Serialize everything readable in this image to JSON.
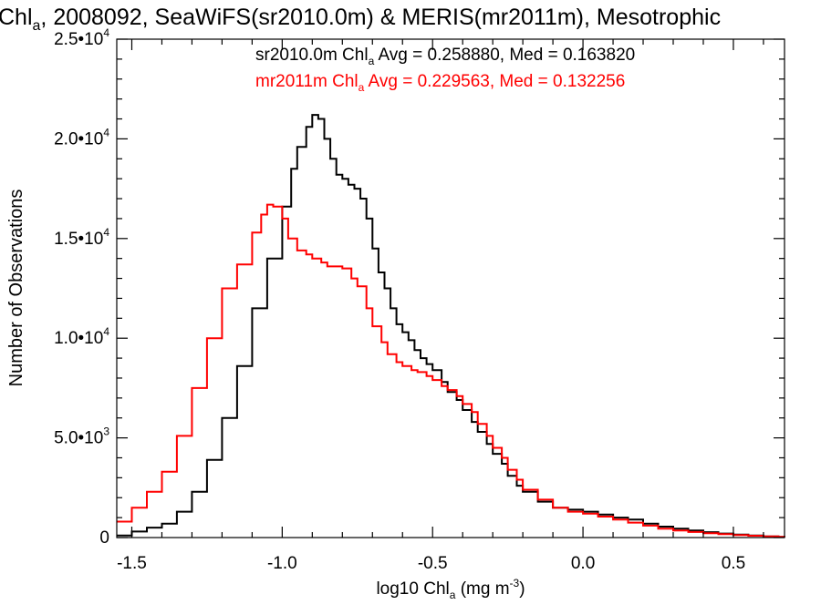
{
  "chart_data": {
    "type": "line",
    "title": {
      "prefix": "Chl",
      "sub": "a",
      "rest": ", 2008092, SeaWiFS(sr2010.0m) & MERIS(mr2011m), Mesotrophic"
    },
    "xlabel": {
      "prefix": "log10 Chl",
      "sub": "a",
      "mid": " (mg m",
      "sup": "-3",
      "suffix": ")"
    },
    "ylabel": "Number of Observations",
    "xlim": [
      -1.55,
      0.67
    ],
    "ylim": [
      0,
      25000
    ],
    "x_ticks": [
      {
        "value": -1.5,
        "label": "-1.5"
      },
      {
        "value": -1.0,
        "label": "-1.0"
      },
      {
        "value": -0.5,
        "label": "-0.5"
      },
      {
        "value": 0.0,
        "label": "0.0"
      },
      {
        "value": 0.5,
        "label": "0.5"
      }
    ],
    "y_ticks": [
      {
        "value": 0,
        "mant": "0",
        "exp": ""
      },
      {
        "value": 5000,
        "mant": "5.0•10",
        "exp": "3"
      },
      {
        "value": 10000,
        "mant": "1.0•10",
        "exp": "4"
      },
      {
        "value": 15000,
        "mant": "1.5•10",
        "exp": "4"
      },
      {
        "value": 20000,
        "mant": "2.0•10",
        "exp": "4"
      },
      {
        "value": 25000,
        "mant": "2.5•10",
        "exp": "4"
      }
    ],
    "grid": false,
    "legend_position": "top-right",
    "series": [
      {
        "color": "#000000",
        "stats": {
          "prefix": "sr2010.0m Chl",
          "sub": "a",
          "rest": " Avg = 0.258880, Med = 0.163820"
        },
        "x": [
          -1.55,
          -1.5,
          -1.45,
          -1.4,
          -1.35,
          -1.3,
          -1.25,
          -1.2,
          -1.15,
          -1.1,
          -1.05,
          -1.0,
          -0.97,
          -0.95,
          -0.92,
          -0.9,
          -0.88,
          -0.86,
          -0.84,
          -0.82,
          -0.8,
          -0.78,
          -0.76,
          -0.74,
          -0.72,
          -0.7,
          -0.68,
          -0.66,
          -0.64,
          -0.62,
          -0.6,
          -0.58,
          -0.56,
          -0.54,
          -0.52,
          -0.5,
          -0.47,
          -0.45,
          -0.42,
          -0.4,
          -0.37,
          -0.35,
          -0.32,
          -0.3,
          -0.27,
          -0.25,
          -0.22,
          -0.2,
          -0.15,
          -0.1,
          -0.05,
          0.0,
          0.05,
          0.1,
          0.15,
          0.2,
          0.25,
          0.3,
          0.35,
          0.4,
          0.45,
          0.5,
          0.55,
          0.6,
          0.65,
          0.67
        ],
        "y": [
          100,
          300,
          500,
          700,
          1300,
          2300,
          3900,
          6000,
          8600,
          11500,
          14000,
          16600,
          18500,
          19600,
          20600,
          21200,
          21000,
          20000,
          19000,
          18200,
          18000,
          17700,
          17500,
          17000,
          16000,
          14500,
          13300,
          12500,
          11500,
          10700,
          10300,
          9900,
          9400,
          9000,
          8700,
          8400,
          7800,
          7300,
          6900,
          6400,
          5800,
          5300,
          4700,
          4200,
          3700,
          3100,
          2600,
          2300,
          1800,
          1500,
          1400,
          1300,
          1150,
          1000,
          900,
          700,
          550,
          450,
          350,
          270,
          200,
          150,
          100,
          60,
          30,
          20
        ]
      },
      {
        "color": "#ff0000",
        "stats": {
          "prefix": "mr2011m Chl",
          "sub": "a",
          "rest": " Avg = 0.229563, Med = 0.132256"
        },
        "x": [
          -1.55,
          -1.5,
          -1.45,
          -1.4,
          -1.35,
          -1.3,
          -1.25,
          -1.2,
          -1.15,
          -1.1,
          -1.07,
          -1.05,
          -1.03,
          -1.0,
          -0.98,
          -0.95,
          -0.92,
          -0.9,
          -0.87,
          -0.85,
          -0.82,
          -0.8,
          -0.77,
          -0.75,
          -0.72,
          -0.7,
          -0.67,
          -0.65,
          -0.62,
          -0.6,
          -0.57,
          -0.55,
          -0.52,
          -0.5,
          -0.47,
          -0.45,
          -0.42,
          -0.4,
          -0.37,
          -0.35,
          -0.32,
          -0.3,
          -0.27,
          -0.25,
          -0.22,
          -0.2,
          -0.15,
          -0.1,
          -0.05,
          0.0,
          0.05,
          0.1,
          0.15,
          0.2,
          0.25,
          0.3,
          0.35,
          0.4,
          0.45,
          0.5,
          0.55,
          0.6,
          0.65,
          0.67
        ],
        "y": [
          800,
          1500,
          2300,
          3300,
          5100,
          7500,
          10000,
          12500,
          13700,
          15300,
          16200,
          16700,
          16600,
          16000,
          15000,
          14400,
          14200,
          14000,
          13800,
          13600,
          13600,
          13500,
          13000,
          12600,
          11500,
          10600,
          9800,
          9200,
          8800,
          8600,
          8400,
          8300,
          8100,
          7900,
          7600,
          7400,
          7100,
          6700,
          6300,
          5700,
          5100,
          4500,
          4000,
          3400,
          2900,
          2400,
          1900,
          1500,
          1300,
          1200,
          1050,
          900,
          750,
          600,
          450,
          350,
          280,
          220,
          170,
          130,
          90,
          60,
          30,
          20
        ]
      }
    ]
  }
}
